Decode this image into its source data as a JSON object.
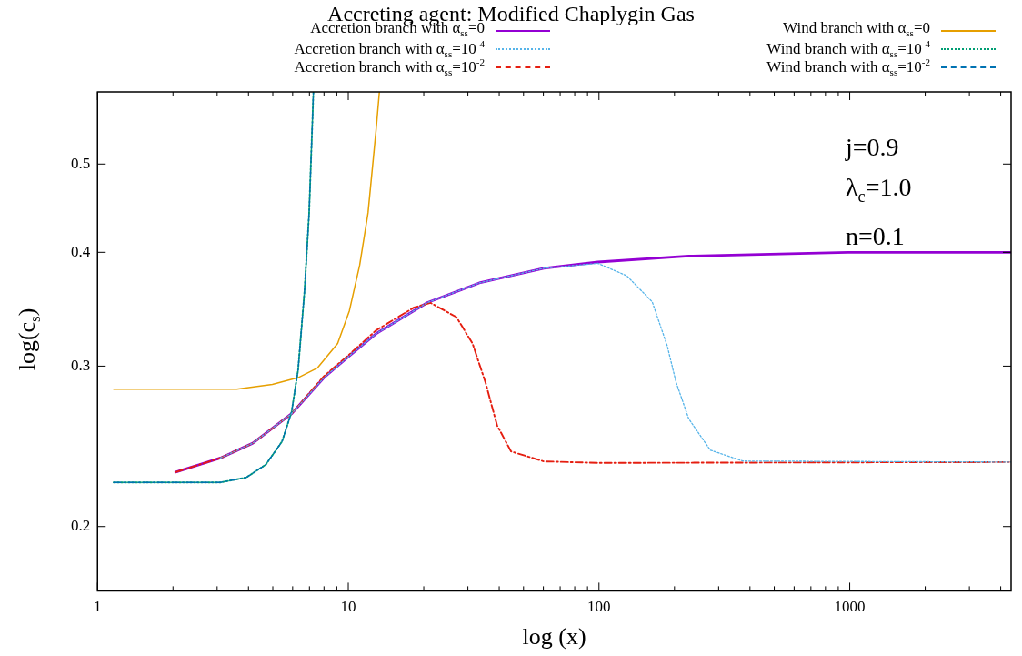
{
  "chart_data": {
    "type": "line",
    "title": "Accreting agent: Modified Chaplygin Gas",
    "xlabel": "log (x)",
    "ylabel": "log(c$_{s}$)",
    "log": "xy",
    "grid": false,
    "legend": "top",
    "marker": "none",
    "xlim": [
      1,
      4400
    ],
    "ylim": [
      0.17,
      0.6
    ],
    "xticks": [
      1,
      {
        "value": 2,
        "label": null
      },
      {
        "value": 3,
        "label": null
      },
      {
        "value": 4,
        "label": null
      },
      {
        "value": 5,
        "label": null
      },
      {
        "value": 6,
        "label": null
      },
      {
        "value": 7,
        "label": null
      },
      {
        "value": 8,
        "label": null
      },
      {
        "value": 9,
        "label": null
      },
      10,
      {
        "value": 20,
        "label": null
      },
      {
        "value": 30,
        "label": null
      },
      {
        "value": 40,
        "label": null
      },
      {
        "value": 50,
        "label": null
      },
      {
        "value": 60,
        "label": null
      },
      {
        "value": 70,
        "label": null
      },
      {
        "value": 80,
        "label": null
      },
      {
        "value": 90,
        "label": null
      },
      100,
      {
        "value": 200,
        "label": null
      },
      {
        "value": 300,
        "label": null
      },
      {
        "value": 400,
        "label": null
      },
      {
        "value": 500,
        "label": null
      },
      {
        "value": 600,
        "label": null
      },
      {
        "value": 700,
        "label": null
      },
      {
        "value": 800,
        "label": null
      },
      {
        "value": 900,
        "label": null
      },
      1000,
      {
        "value": 2000,
        "label": null
      },
      {
        "value": 3000,
        "label": null
      },
      {
        "value": 4000,
        "label": null
      }
    ],
    "yticks": [
      0.2,
      0.3,
      0.4,
      0.5
    ],
    "annotations": [
      "j=0.9",
      "λ$_{c}$=1.0",
      "n=0.1"
    ],
    "series": [
      {
        "name": "Accretion branch with α$_{ss}$=0",
        "color": "#9400d3",
        "line_style": "solid",
        "x": [
          2.05,
          3.09,
          4.16,
          5.94,
          8.0,
          10.1,
          12.9,
          20.7,
          33.3,
          60.2,
          99,
          228,
          984,
          4400
        ],
        "values": [
          0.2295,
          0.2378,
          0.2469,
          0.266,
          0.2914,
          0.3079,
          0.3256,
          0.3523,
          0.3702,
          0.3842,
          0.3903,
          0.3962,
          0.3999,
          0.4
        ]
      },
      {
        "name": "Accretion branch with α$_{ss}$=10$^{-4}$",
        "color": "#56b4e9",
        "line_style": "dotted",
        "x": [
          3.09,
          4.16,
          5.94,
          8.0,
          10.1,
          12.9,
          20.7,
          33.3,
          60.2,
          99,
          129,
          163,
          187,
          203,
          228,
          278,
          375,
          4400
        ],
        "values": [
          0.2378,
          0.2469,
          0.266,
          0.2914,
          0.3079,
          0.3256,
          0.3523,
          0.3702,
          0.3842,
          0.389,
          0.377,
          0.353,
          0.316,
          0.288,
          0.2626,
          0.2426,
          0.236,
          0.2354
        ]
      },
      {
        "name": "Accretion branch with α$_{ss}$=10$^{-2}$",
        "color": "#e51e10",
        "line_style": "dashed",
        "x": [
          2.05,
          3.09,
          4.16,
          5.94,
          8.0,
          10.1,
          12.9,
          18.3,
          21.3,
          27.0,
          31.3,
          35.3,
          39.2,
          44.6,
          60.2,
          99,
          4400
        ],
        "values": [
          0.2295,
          0.2378,
          0.2469,
          0.266,
          0.2925,
          0.309,
          0.3284,
          0.348,
          0.352,
          0.3396,
          0.3177,
          0.2876,
          0.2584,
          0.2418,
          0.2358,
          0.2349,
          0.2354
        ]
      },
      {
        "name": "Wind branch with α$_{ss}$=0",
        "color": "#e69f00",
        "line_style": "solid",
        "x": [
          1.16,
          3.59,
          4.98,
          6.31,
          7.54,
          9.07,
          10.1,
          11.1,
          11.99,
          12.9,
          13.3
        ],
        "values": [
          0.283,
          0.283,
          0.2864,
          0.2914,
          0.2987,
          0.3177,
          0.345,
          0.387,
          0.442,
          0.544,
          0.599
        ]
      },
      {
        "name": "Wind branch with α$_{ss}$=10$^{-4}$",
        "color": "#009e73",
        "line_style": "dotted",
        "x": [
          1.16,
          3.09,
          3.92,
          4.69,
          5.44,
          5.94,
          6.31,
          6.69,
          6.98,
          7.21,
          7.26
        ],
        "values": [
          0.2236,
          0.2236,
          0.2264,
          0.2339,
          0.2479,
          0.2671,
          0.2974,
          0.3626,
          0.442,
          0.567,
          0.6
        ]
      },
      {
        "name": "Wind branch with α$_{ss}$=10$^{-2}$",
        "color": "#0072b2",
        "line_style": "dashed",
        "x": [
          1.16,
          3.09,
          3.92,
          4.69,
          5.44,
          5.94,
          6.31,
          6.69,
          6.98,
          7.21,
          7.26
        ],
        "values": [
          0.2236,
          0.2236,
          0.2264,
          0.2339,
          0.2479,
          0.2671,
          0.2974,
          0.3626,
          0.442,
          0.567,
          0.6
        ]
      }
    ]
  }
}
